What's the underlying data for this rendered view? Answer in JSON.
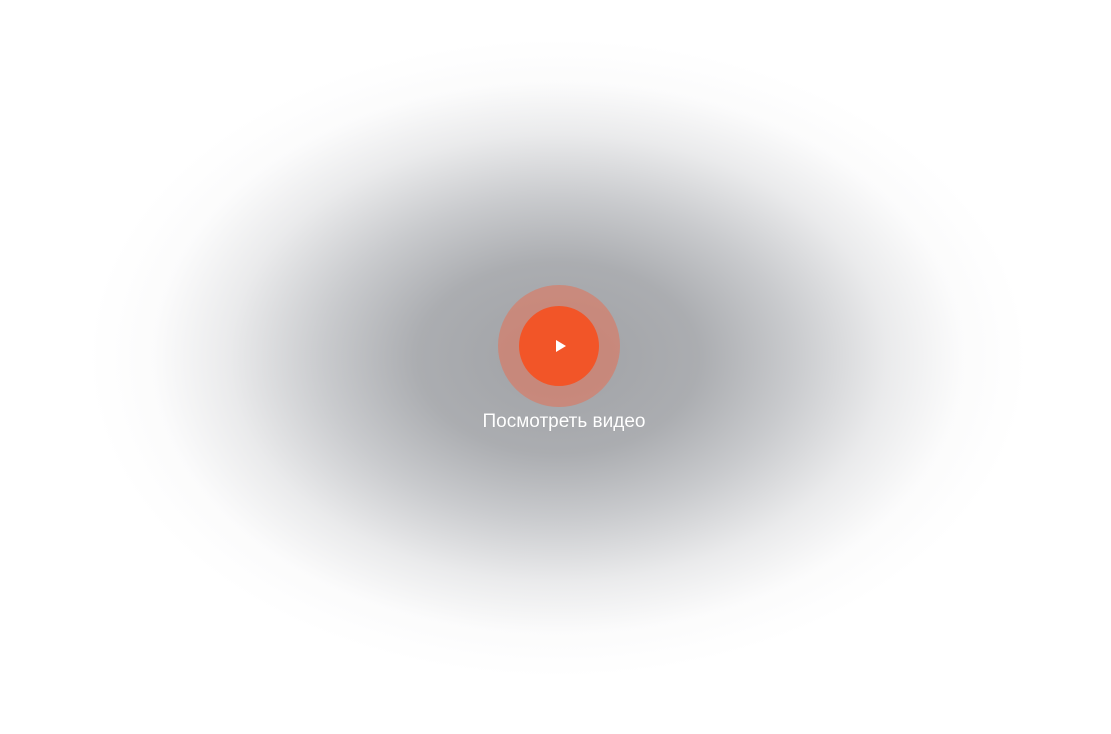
{
  "video_cta": {
    "label": "Посмотреть видео",
    "icon": "play-icon"
  },
  "colors": {
    "accent": "#f25528",
    "halo": "#e86d50",
    "background": "#ffffff",
    "glow": "#a0a2a6",
    "label": "#ffffff"
  }
}
